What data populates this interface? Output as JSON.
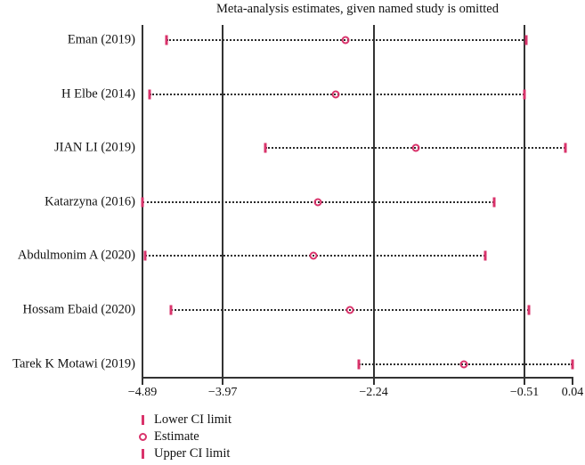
{
  "accent_color": "#d9336b",
  "line_color": "#333333",
  "chart_data": {
    "type": "scatter",
    "variant": "leave-one-out-sensitivity-forest-plot",
    "title": "Meta-analysis estimates, given named study is omitted",
    "xlabel": "",
    "ylabel": "",
    "xlim": [
      -4.89,
      0.04
    ],
    "grid": false,
    "x_ticks": [
      -4.89,
      -3.97,
      -2.24,
      -0.51,
      0.04
    ],
    "x_tick_labels": [
      "−4.89",
      "−3.97",
      "−2.24",
      "−0.51",
      "0.04"
    ],
    "reference_lines": [
      -3.97,
      -2.24,
      -0.51
    ],
    "studies": [
      {
        "label": "Eman (2019)",
        "lower": -4.61,
        "estimate": -2.56,
        "upper": -0.49
      },
      {
        "label": "H Elbe (2014)",
        "lower": -4.81,
        "estimate": -2.68,
        "upper": -0.51
      },
      {
        "label": "JIAN LI (2019)",
        "lower": -3.48,
        "estimate": -1.76,
        "upper": -0.04
      },
      {
        "label": "Katarzyna (2016)",
        "lower": -4.89,
        "estimate": -2.88,
        "upper": -0.86
      },
      {
        "label": "Abdulmonim A (2020)",
        "lower": -4.86,
        "estimate": -2.93,
        "upper": -0.96
      },
      {
        "label": "Hossam Ebaid (2020)",
        "lower": -4.56,
        "estimate": -2.51,
        "upper": -0.46
      },
      {
        "label": "Tarek K Motawi (2019)",
        "lower": -2.41,
        "estimate": -1.21,
        "upper": 0.04
      }
    ],
    "legend": [
      {
        "marker": "tick",
        "label": "Lower CI limit"
      },
      {
        "marker": "circle",
        "label": "Estimate"
      },
      {
        "marker": "tick",
        "label": "Upper CI limit"
      }
    ],
    "legend_position": "bottom-left"
  }
}
